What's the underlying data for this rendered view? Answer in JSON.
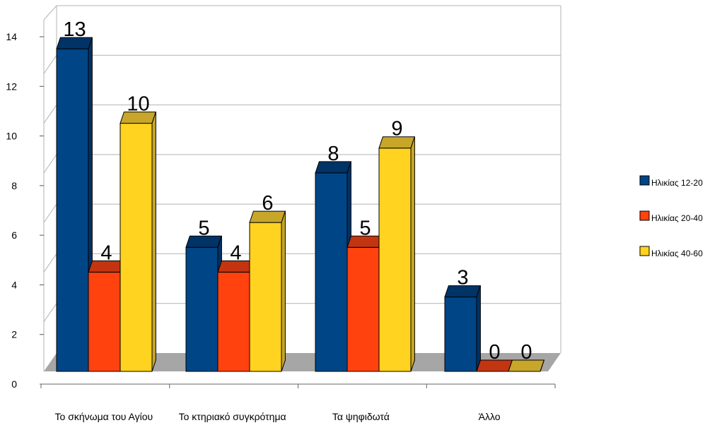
{
  "chart_data": {
    "type": "bar",
    "categories": [
      "Το σκήνωμα του Αγίου",
      "Το κτηριακό συγκρότημα",
      "Τα ψηφιδωτά",
      "Άλλο"
    ],
    "series": [
      {
        "name": "Ηλικίας 12-20",
        "values": [
          13,
          5,
          8,
          3
        ]
      },
      {
        "name": "Ηλικίας 20-40",
        "values": [
          4,
          4,
          5,
          0
        ]
      },
      {
        "name": "Ηλικίας 40-60",
        "values": [
          10,
          6,
          9,
          0
        ]
      }
    ],
    "yticks": [
      "0",
      "2",
      "4",
      "6",
      "8",
      "10",
      "12",
      "14"
    ],
    "ylim": [
      0,
      14
    ],
    "grid": true,
    "legend": "right",
    "three_d": true,
    "colors": {
      "series": [
        "#004586",
        "#ff420e",
        "#ffd320"
      ],
      "series_top": [
        "#003366",
        "#c33510",
        "#c7a62a"
      ],
      "floor": "#a6a6a6",
      "grid": "#b3b3b3"
    }
  }
}
